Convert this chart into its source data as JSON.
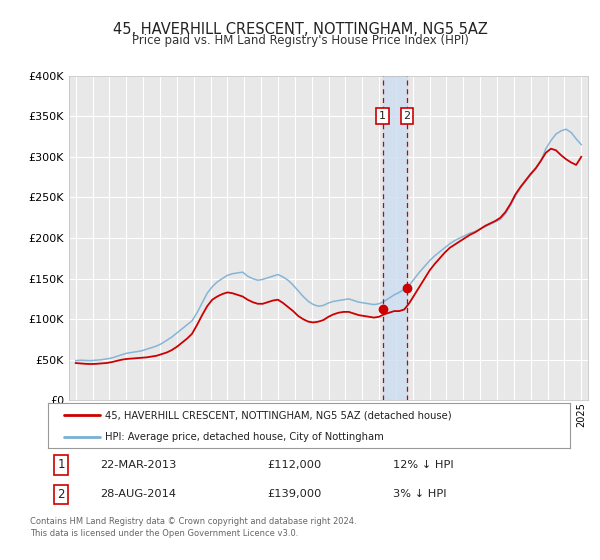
{
  "title": "45, HAVERHILL CRESCENT, NOTTINGHAM, NG5 5AZ",
  "subtitle": "Price paid vs. HM Land Registry's House Price Index (HPI)",
  "background_color": "#ffffff",
  "plot_background": "#e8e8e8",
  "grid_color": "#ffffff",
  "sale1_x": 2013.22,
  "sale1_price": 112000,
  "sale1_label": "22-MAR-2013",
  "sale1_pct": "12%",
  "sale2_x": 2014.65,
  "sale2_price": 139000,
  "sale2_label": "28-AUG-2014",
  "sale2_pct": "3%",
  "legend_line1": "45, HAVERHILL CRESCENT, NOTTINGHAM, NG5 5AZ (detached house)",
  "legend_line2": "HPI: Average price, detached house, City of Nottingham",
  "footer1": "Contains HM Land Registry data © Crown copyright and database right 2024.",
  "footer2": "This data is licensed under the Open Government Licence v3.0.",
  "hpi_color": "#7bafd4",
  "price_color": "#cc0000",
  "shade_color": "#ccddf0",
  "ylim_max": 400000,
  "ylim_min": 0,
  "xlim_min": 1994.6,
  "xlim_max": 2025.4,
  "years_hpi": [
    1995.0,
    1995.3,
    1995.6,
    1995.9,
    1996.2,
    1996.5,
    1996.8,
    1997.1,
    1997.4,
    1997.7,
    1998.0,
    1998.3,
    1998.6,
    1998.9,
    1999.2,
    1999.5,
    1999.8,
    2000.1,
    2000.4,
    2000.7,
    2001.0,
    2001.3,
    2001.6,
    2001.9,
    2002.2,
    2002.5,
    2002.8,
    2003.1,
    2003.4,
    2003.7,
    2004.0,
    2004.3,
    2004.6,
    2004.9,
    2005.2,
    2005.5,
    2005.8,
    2006.1,
    2006.4,
    2006.7,
    2007.0,
    2007.3,
    2007.6,
    2007.9,
    2008.2,
    2008.5,
    2008.8,
    2009.1,
    2009.4,
    2009.7,
    2010.0,
    2010.3,
    2010.6,
    2010.9,
    2011.2,
    2011.5,
    2011.8,
    2012.1,
    2012.4,
    2012.7,
    2013.0,
    2013.3,
    2013.6,
    2013.9,
    2014.2,
    2014.5,
    2014.8,
    2015.1,
    2015.4,
    2015.7,
    2016.0,
    2016.3,
    2016.6,
    2016.9,
    2017.2,
    2017.5,
    2017.8,
    2018.1,
    2018.4,
    2018.7,
    2019.0,
    2019.3,
    2019.6,
    2019.9,
    2020.2,
    2020.5,
    2020.8,
    2021.1,
    2021.4,
    2021.7,
    2022.0,
    2022.3,
    2022.6,
    2022.9,
    2023.2,
    2023.5,
    2023.8,
    2024.1,
    2024.4,
    2024.7,
    2025.0
  ],
  "hpi_vals": [
    49000,
    49500,
    49200,
    49000,
    49500,
    50000,
    51000,
    52000,
    54000,
    56000,
    58000,
    59000,
    60000,
    61000,
    63000,
    65000,
    67000,
    70000,
    74000,
    78000,
    83000,
    88000,
    93000,
    98000,
    108000,
    120000,
    132000,
    140000,
    146000,
    150000,
    154000,
    156000,
    157000,
    158000,
    153000,
    150000,
    148000,
    149000,
    151000,
    153000,
    155000,
    152000,
    148000,
    142000,
    135000,
    128000,
    122000,
    118000,
    116000,
    117000,
    120000,
    122000,
    123000,
    124000,
    125000,
    123000,
    121000,
    120000,
    119000,
    118000,
    119000,
    122000,
    126000,
    130000,
    133000,
    137000,
    142000,
    150000,
    158000,
    165000,
    172000,
    178000,
    183000,
    188000,
    193000,
    197000,
    200000,
    203000,
    206000,
    208000,
    211000,
    214000,
    217000,
    220000,
    223000,
    230000,
    240000,
    252000,
    262000,
    270000,
    278000,
    285000,
    295000,
    310000,
    320000,
    328000,
    332000,
    334000,
    330000,
    322000,
    315000
  ],
  "red_vals": [
    46000,
    45500,
    45000,
    44800,
    45000,
    45500,
    46000,
    47000,
    48500,
    50000,
    51000,
    51500,
    52000,
    52500,
    53000,
    54000,
    55000,
    57000,
    59000,
    62000,
    66000,
    71000,
    76000,
    82000,
    93000,
    105000,
    116000,
    124000,
    128000,
    131000,
    133000,
    132000,
    130000,
    128000,
    124000,
    121000,
    119000,
    119000,
    121000,
    123000,
    124000,
    120000,
    115000,
    110000,
    104000,
    100000,
    97000,
    96000,
    97000,
    99000,
    103000,
    106000,
    108000,
    109000,
    109000,
    107000,
    105000,
    104000,
    103000,
    102000,
    103000,
    106000,
    108000,
    110000,
    110000,
    112000,
    120000,
    130000,
    140000,
    150000,
    160000,
    168000,
    175000,
    182000,
    188000,
    192000,
    196000,
    200000,
    204000,
    207000,
    211000,
    215000,
    218000,
    221000,
    225000,
    232000,
    242000,
    254000,
    263000,
    271000,
    279000,
    286000,
    295000,
    305000,
    310000,
    308000,
    302000,
    297000,
    293000,
    290000,
    300000
  ]
}
